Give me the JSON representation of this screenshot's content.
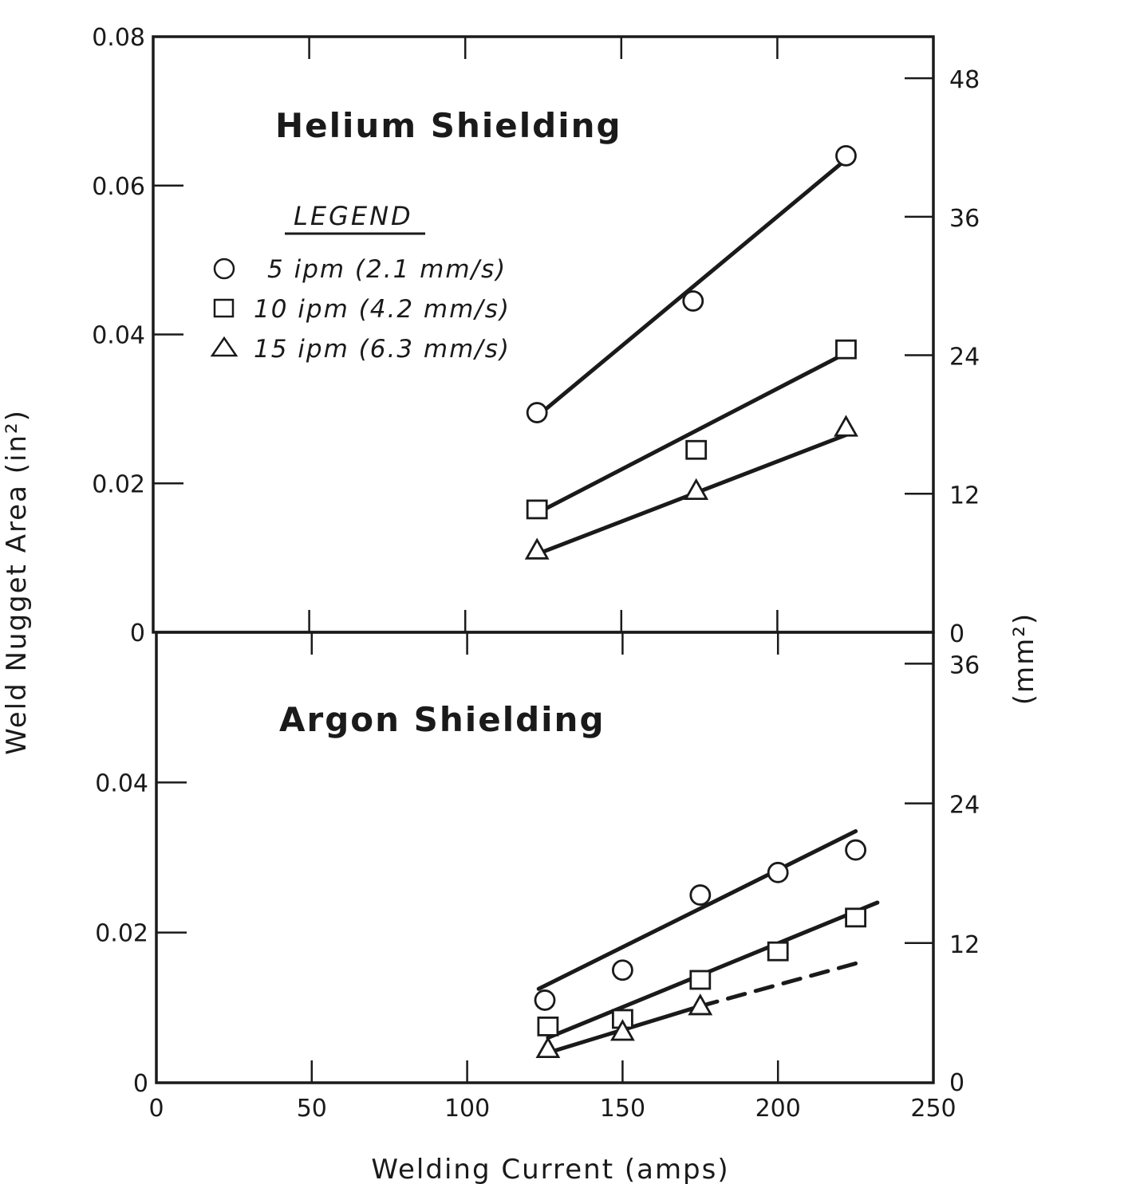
{
  "chart_data": [
    {
      "type": "scatter",
      "title": "Helium Shielding",
      "xlabel": "Welding Current (amps)",
      "ylabel": "Weld Nugget Area (in²)",
      "ylabel_right": "(mm²)",
      "xlim": [
        0,
        250
      ],
      "ylim": [
        0,
        0.08
      ],
      "ylim_right": [
        0,
        51.6
      ],
      "x_ticks": [
        "0",
        "50",
        "100",
        "150",
        "200",
        "250"
      ],
      "y_ticks": [
        "0",
        "0.02",
        "0.04",
        "0.06",
        "0.08"
      ],
      "y_ticks_right": [
        "0",
        "12",
        "24",
        "36",
        "48"
      ],
      "legend": {
        "title": "LEGEND",
        "entries": [
          "5 ipm (2.1 mm/s)",
          "10 ipm (4.2 mm/s)",
          "15 ipm (6.3 mm/s)"
        ]
      },
      "series": [
        {
          "name": "5 ipm (2.1 mm/s)",
          "marker": "circle",
          "x": [
            123,
            173,
            222
          ],
          "y": [
            0.0295,
            0.0445,
            0.064
          ]
        },
        {
          "name": "10 ipm (4.2 mm/s)",
          "marker": "square",
          "x": [
            123,
            174,
            222
          ],
          "y": [
            0.0165,
            0.0245,
            0.038
          ]
        },
        {
          "name": "15 ipm (6.3 mm/s)",
          "marker": "triangle",
          "x": [
            123,
            174,
            222
          ],
          "y": [
            0.011,
            0.019,
            0.0275
          ]
        }
      ],
      "fit_lines": [
        {
          "series": "5 ipm (2.1 mm/s)",
          "x": [
            123,
            222
          ],
          "y": [
            0.029,
            0.0635
          ],
          "dashed": false
        },
        {
          "series": "10 ipm (4.2 mm/s)",
          "x": [
            123,
            222
          ],
          "y": [
            0.016,
            0.0375
          ],
          "dashed": false
        },
        {
          "series": "15 ipm (6.3 mm/s)",
          "x": [
            123,
            222
          ],
          "y": [
            0.0105,
            0.0265
          ],
          "dashed": false
        }
      ]
    },
    {
      "type": "scatter",
      "title": "Argon Shielding",
      "xlim": [
        0,
        250
      ],
      "ylim": [
        0,
        0.06
      ],
      "ylim_right": [
        0,
        38.7
      ],
      "x_ticks": [
        "0",
        "50",
        "100",
        "150",
        "200",
        "250"
      ],
      "y_ticks": [
        "0",
        "0.02",
        "0.04"
      ],
      "y_ticks_right": [
        "0",
        "12",
        "24",
        "36"
      ],
      "series": [
        {
          "name": "5 ipm (2.1 mm/s)",
          "marker": "circle",
          "x": [
            125,
            150,
            175,
            200,
            225
          ],
          "y": [
            0.011,
            0.015,
            0.025,
            0.028,
            0.031
          ]
        },
        {
          "name": "10 ipm (4.2 mm/s)",
          "marker": "square",
          "x": [
            126,
            150,
            175,
            200,
            225
          ],
          "y": [
            0.0075,
            0.0085,
            0.0137,
            0.0175,
            0.022
          ]
        },
        {
          "name": "15 ipm (6.3 mm/s)",
          "marker": "triangle",
          "x": [
            126,
            150,
            175
          ],
          "y": [
            0.0045,
            0.0068,
            0.0102
          ]
        }
      ],
      "fit_lines": [
        {
          "series": "5 ipm (2.1 mm/s)",
          "x": [
            123,
            225
          ],
          "y": [
            0.0125,
            0.0335
          ],
          "dashed": false
        },
        {
          "series": "10 ipm (4.2 mm/s)",
          "x": [
            126,
            232
          ],
          "y": [
            0.006,
            0.024
          ],
          "dashed": false
        },
        {
          "series": "15 ipm (6.3 mm/s)",
          "x": [
            126,
            175
          ],
          "y": [
            0.004,
            0.0102
          ],
          "dashed": false
        },
        {
          "series": "15 ipm (6.3 mm/s)",
          "x": [
            175,
            226
          ],
          "y": [
            0.0102,
            0.016
          ],
          "dashed": true
        }
      ]
    }
  ]
}
